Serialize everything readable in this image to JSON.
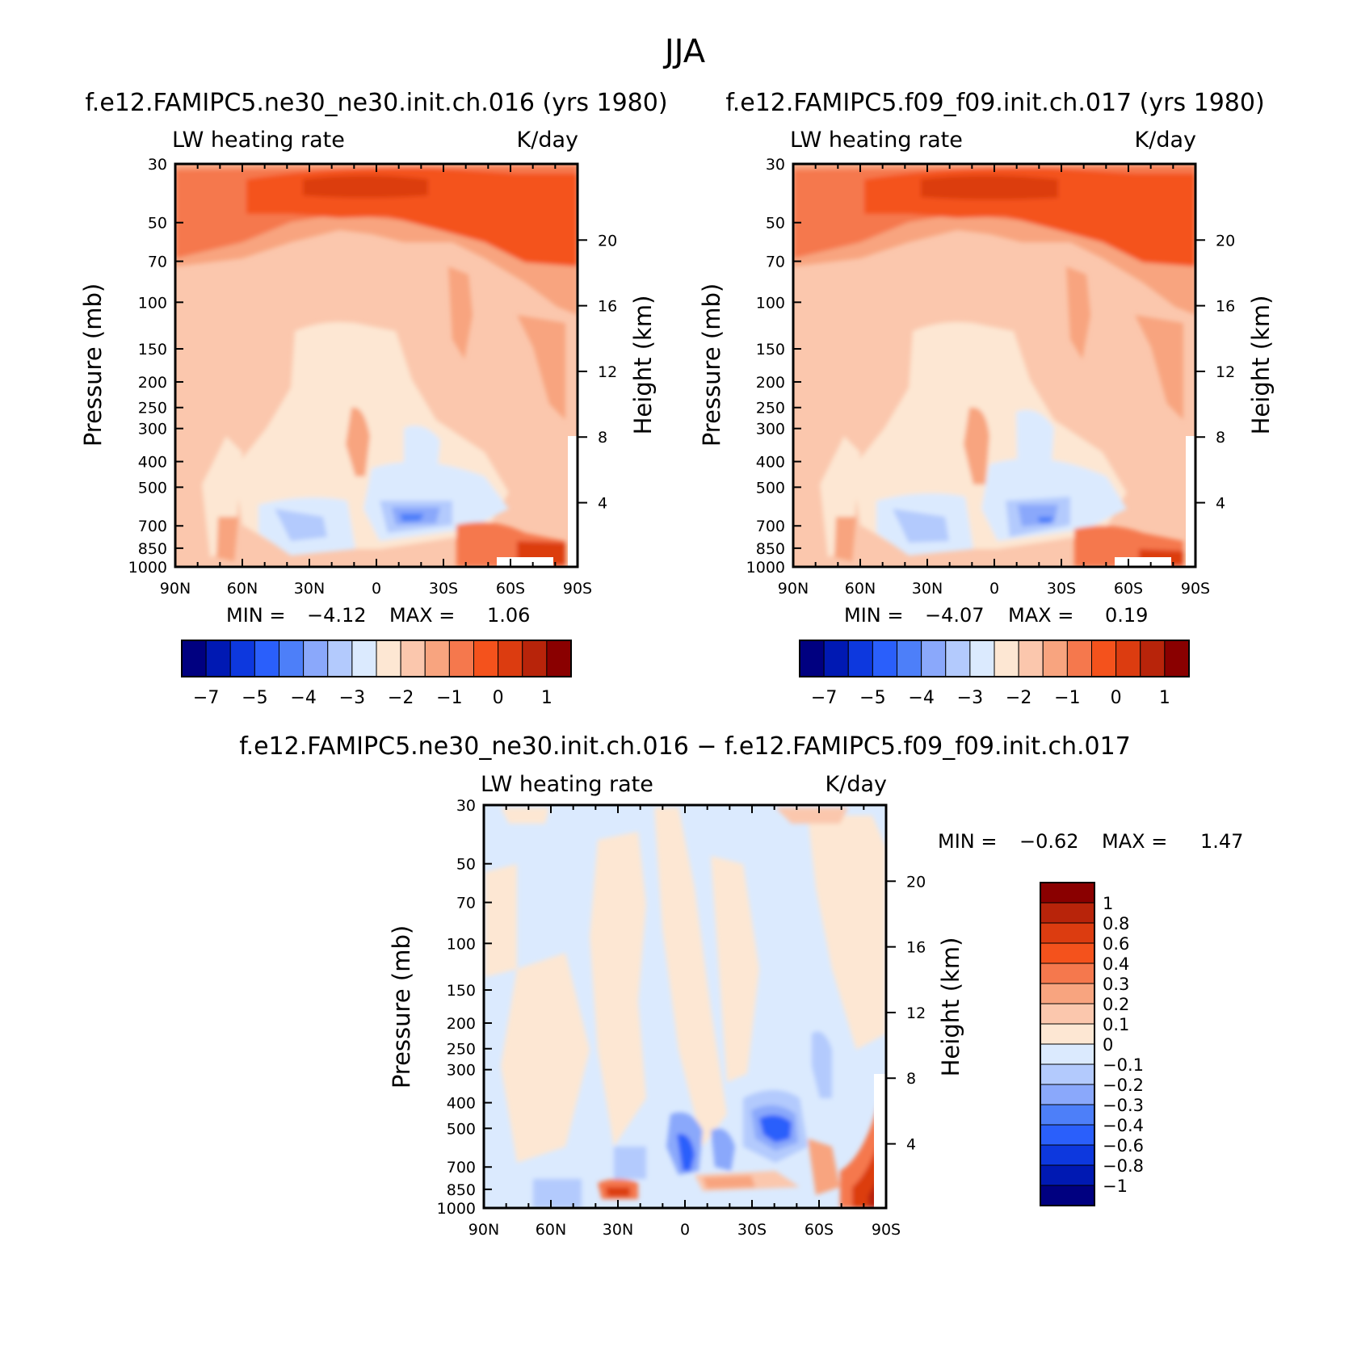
{
  "page_title": "JJA",
  "colors": {
    "main_scale": [
      "#000080",
      "#0019b3",
      "#0d38de",
      "#2a5ffb",
      "#4d7ff9",
      "#8aa8fb",
      "#b3cafd",
      "#dbeafe",
      "#fde7d3",
      "#fbc7ad",
      "#f8a47f",
      "#f5784d",
      "#f4521c",
      "#dc3c10",
      "#b8240a",
      "#8a0000"
    ],
    "diff_scale": [
      "#000080",
      "#0019b3",
      "#0d38de",
      "#2a5ffb",
      "#4d7ff9",
      "#8aa8fb",
      "#b3cafd",
      "#dbeafe",
      "#fde7d3",
      "#fbc7ad",
      "#f8a47f",
      "#f5784d",
      "#f4521c",
      "#dc3c10",
      "#b8240a",
      "#8a0000"
    ]
  },
  "chart_data": [
    {
      "type": "heatmap",
      "title": "f.e12.FAMIPC5.ne30_ne30.init.ch.016 (yrs 1980)",
      "left_label": "LW heating rate",
      "right_label": "K/day",
      "xlabel": "",
      "ylabel": "Pressure (mb)",
      "y2label": "Height (km)",
      "x_ticks": [
        "90N",
        "60N",
        "30N",
        "0",
        "30S",
        "60S",
        "90S"
      ],
      "y_ticks": [
        "30",
        "50",
        "70",
        "100",
        "150",
        "200",
        "250",
        "300",
        "400",
        "500",
        "700",
        "850",
        "1000"
      ],
      "y2_ticks": [
        "20",
        "16",
        "12",
        "8",
        "4"
      ],
      "min_label": "MIN =",
      "min_value": "−4.12",
      "max_label": "MAX =",
      "max_value": "1.06",
      "colorbar_labels": [
        "−7",
        "−5",
        "−4",
        "−3",
        "−2",
        "−1",
        "0",
        "1"
      ],
      "min": -4.12,
      "max": 1.06
    },
    {
      "type": "heatmap",
      "title": "f.e12.FAMIPC5.f09_f09.init.ch.017 (yrs 1980)",
      "left_label": "LW heating rate",
      "right_label": "K/day",
      "xlabel": "",
      "ylabel": "Pressure (mb)",
      "y2label": "Height (km)",
      "x_ticks": [
        "90N",
        "60N",
        "30N",
        "0",
        "30S",
        "60S",
        "90S"
      ],
      "y_ticks": [
        "30",
        "50",
        "70",
        "100",
        "150",
        "200",
        "250",
        "300",
        "400",
        "500",
        "700",
        "850",
        "1000"
      ],
      "y2_ticks": [
        "20",
        "16",
        "12",
        "8",
        "4"
      ],
      "min_label": "MIN =",
      "min_value": "−4.07",
      "max_label": "MAX =",
      "max_value": "0.19",
      "colorbar_labels": [
        "−7",
        "−5",
        "−4",
        "−3",
        "−2",
        "−1",
        "0",
        "1"
      ],
      "min": -4.07,
      "max": 0.19
    },
    {
      "type": "heatmap",
      "title": "f.e12.FAMIPC5.ne30_ne30.init.ch.016 − f.e12.FAMIPC5.f09_f09.init.ch.017",
      "left_label": "LW heating rate",
      "right_label": "K/day",
      "xlabel": "",
      "ylabel": "Pressure (mb)",
      "y2label": "Height (km)",
      "x_ticks": [
        "90N",
        "60N",
        "30N",
        "0",
        "30S",
        "60S",
        "90S"
      ],
      "y_ticks": [
        "30",
        "50",
        "70",
        "100",
        "150",
        "200",
        "250",
        "300",
        "400",
        "500",
        "700",
        "850",
        "1000"
      ],
      "y2_ticks": [
        "20",
        "16",
        "12",
        "8",
        "4"
      ],
      "min_label": "MIN =",
      "min_value": "−0.62",
      "max_label": "MAX =",
      "max_value": "1.47",
      "colorbar_labels": [
        "1",
        "0.8",
        "0.6",
        "0.4",
        "0.3",
        "0.2",
        "0.1",
        "0",
        "−0.1",
        "−0.2",
        "−0.3",
        "−0.4",
        "−0.6",
        "−0.8",
        "−1"
      ],
      "min": -0.62,
      "max": 1.47
    }
  ]
}
